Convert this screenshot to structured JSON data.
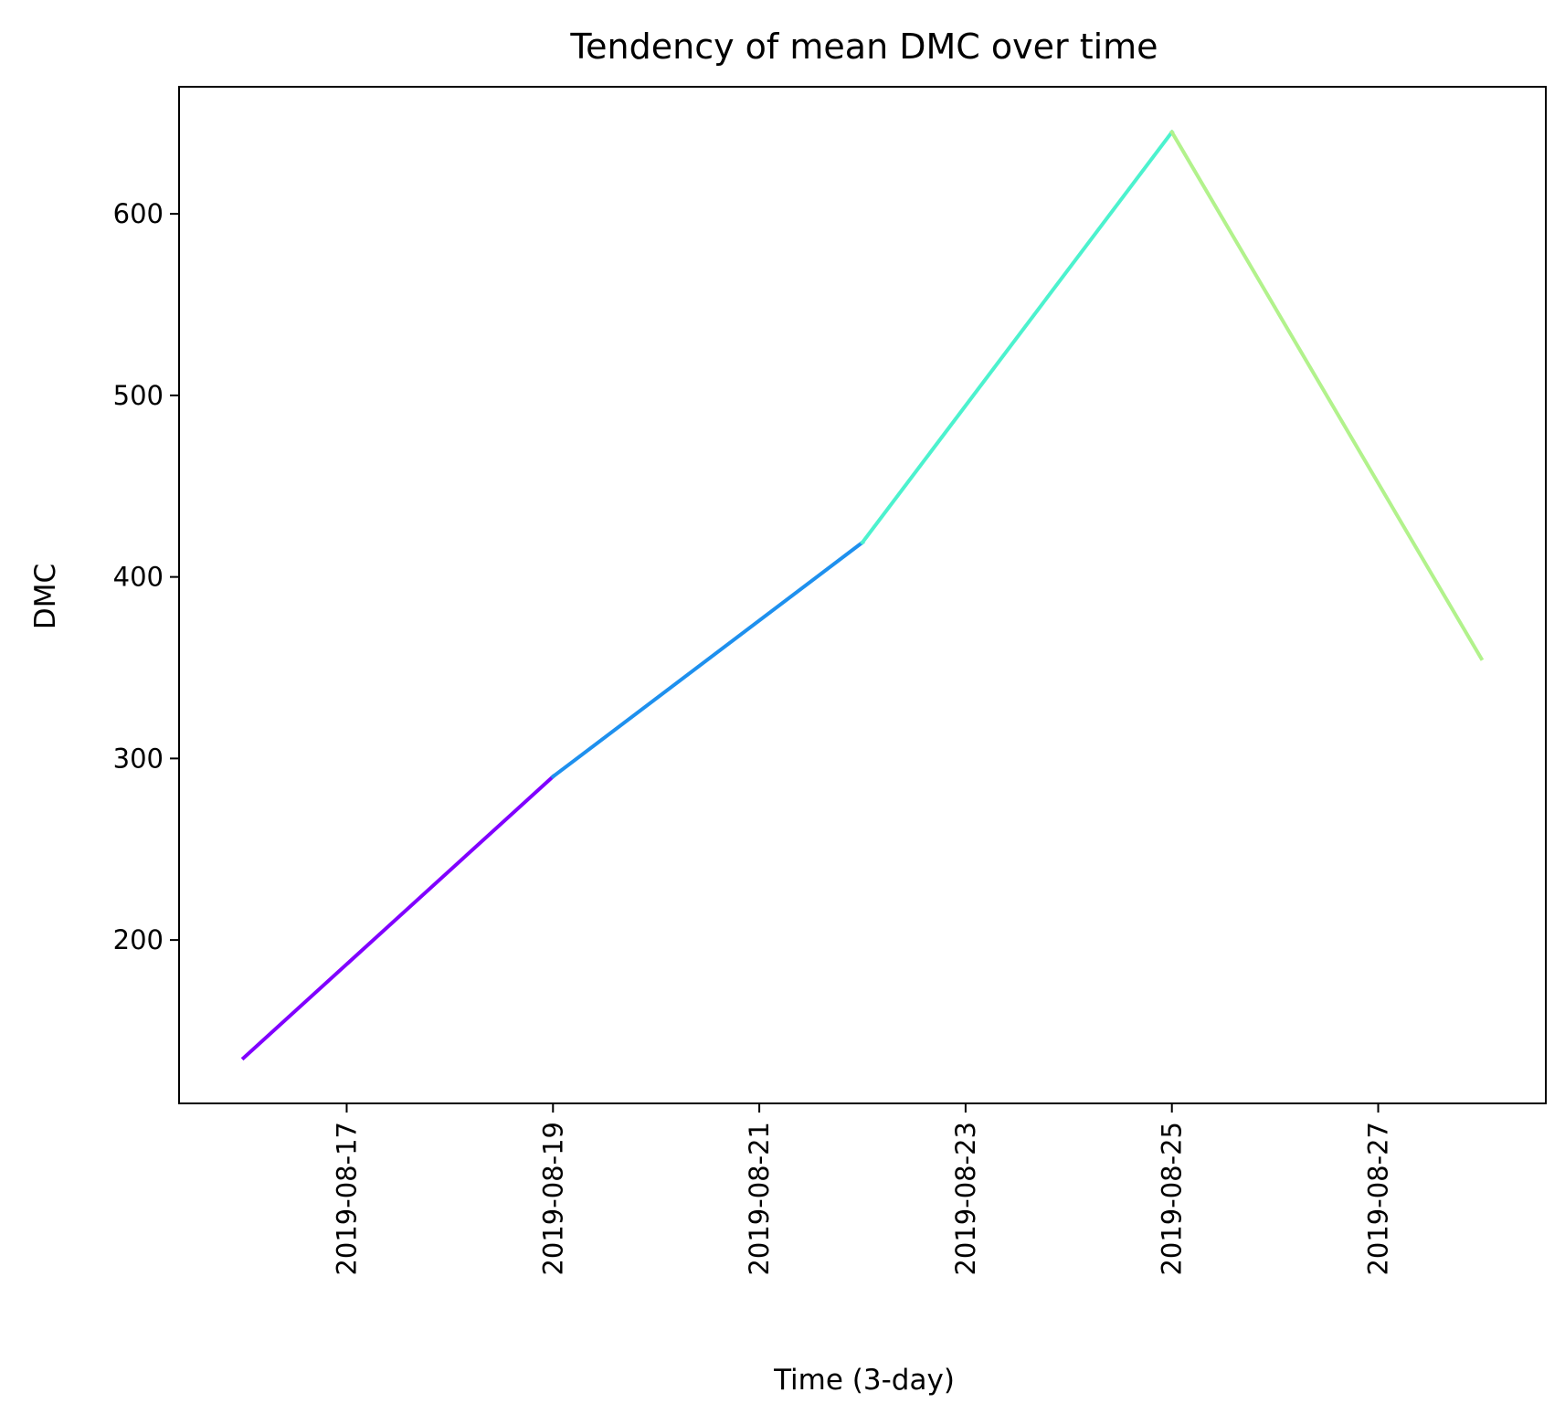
{
  "chart_data": {
    "type": "line",
    "title": "Tendency of mean DMC over time",
    "xlabel": "Time (3-day)",
    "ylabel": "DMC",
    "x_tick_labels": [
      "2019-08-17",
      "2019-08-19",
      "2019-08-21",
      "2019-08-23",
      "2019-08-25",
      "2019-08-27"
    ],
    "y_ticks": [
      200,
      300,
      400,
      500,
      600
    ],
    "xlim": [
      "2019-08-15T09:00",
      "2019-08-28T15:00"
    ],
    "ylim": [
      110,
      670
    ],
    "grid": false,
    "points": [
      {
        "x": "2019-08-16",
        "y": 135
      },
      {
        "x": "2019-08-19",
        "y": 290
      },
      {
        "x": "2019-08-22",
        "y": 419
      },
      {
        "x": "2019-08-25",
        "y": 645
      },
      {
        "x": "2019-08-28",
        "y": 355
      }
    ],
    "segment_colors": [
      "#8000ff",
      "#1e90ee",
      "#4cf2ce",
      "#b2f28c"
    ]
  }
}
